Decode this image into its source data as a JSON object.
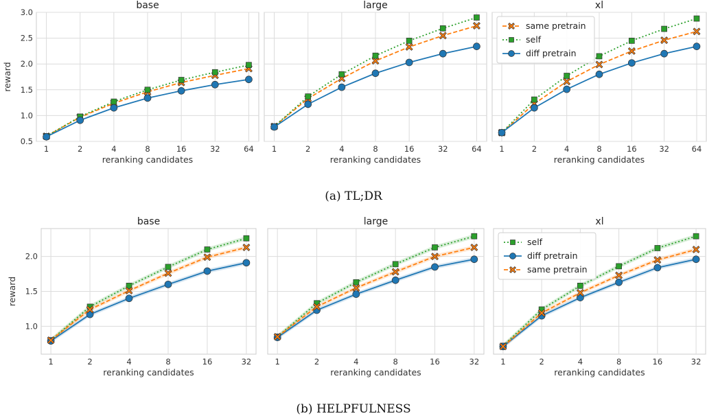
{
  "figure": {
    "caption_a": "(a) TL;DR",
    "caption_b": "(b) HELPFULNESS"
  },
  "colors": {
    "self": "#2ca02c",
    "same_pretrain": "#ff7f0e",
    "diff_pretrain": "#1f77b4",
    "grid": "#dcdcdc",
    "frame": "#cccccc"
  },
  "chart_data": [
    {
      "type": "line",
      "group": "a",
      "title": "base",
      "xlabel": "reranking candidates",
      "ylabel": "reward",
      "x": [
        "1",
        "2",
        "4",
        "8",
        "16",
        "32",
        "64"
      ],
      "ylim": [
        0.5,
        3.0
      ],
      "yticks": [
        "0.5",
        "1.0",
        "1.5",
        "2.0",
        "2.5",
        "3.0"
      ],
      "grid": true,
      "legend": null,
      "series": [
        {
          "name": "same pretrain",
          "key": "same_pretrain",
          "values": [
            0.6,
            0.97,
            1.24,
            1.46,
            1.64,
            1.78,
            1.91
          ]
        },
        {
          "name": "self",
          "key": "self",
          "values": [
            0.6,
            0.98,
            1.27,
            1.5,
            1.69,
            1.84,
            1.98
          ]
        },
        {
          "name": "diff pretrain",
          "key": "diff_pretrain",
          "values": [
            0.59,
            0.91,
            1.15,
            1.34,
            1.48,
            1.6,
            1.7
          ]
        }
      ]
    },
    {
      "type": "line",
      "group": "a",
      "title": "large",
      "xlabel": "reranking candidates",
      "ylabel": "",
      "x": [
        "1",
        "2",
        "4",
        "8",
        "16",
        "32",
        "64"
      ],
      "ylim": [
        0.5,
        3.0
      ],
      "yticks": [
        "0.5",
        "1.0",
        "1.5",
        "2.0",
        "2.5",
        "3.0"
      ],
      "grid": true,
      "legend": null,
      "series": [
        {
          "name": "same pretrain",
          "key": "same_pretrain",
          "values": [
            0.79,
            1.33,
            1.72,
            2.06,
            2.33,
            2.55,
            2.74
          ]
        },
        {
          "name": "self",
          "key": "self",
          "values": [
            0.79,
            1.37,
            1.8,
            2.16,
            2.45,
            2.69,
            2.9
          ]
        },
        {
          "name": "diff pretrain",
          "key": "diff_pretrain",
          "values": [
            0.78,
            1.22,
            1.55,
            1.82,
            2.03,
            2.2,
            2.34
          ]
        }
      ]
    },
    {
      "type": "line",
      "group": "a",
      "title": "xl",
      "xlabel": "reranking candidates",
      "ylabel": "",
      "x": [
        "1",
        "2",
        "4",
        "8",
        "16",
        "32",
        "64"
      ],
      "ylim": [
        0.5,
        3.0
      ],
      "yticks": [
        "0.5",
        "1.0",
        "1.5",
        "2.0",
        "2.5",
        "3.0"
      ],
      "grid": true,
      "legend": "upper-left",
      "series": [
        {
          "name": "same pretrain",
          "key": "same_pretrain",
          "values": [
            0.67,
            1.23,
            1.66,
            1.99,
            2.25,
            2.46,
            2.63
          ]
        },
        {
          "name": "self",
          "key": "self",
          "values": [
            0.67,
            1.31,
            1.77,
            2.15,
            2.45,
            2.68,
            2.88
          ]
        },
        {
          "name": "diff pretrain",
          "key": "diff_pretrain",
          "values": [
            0.67,
            1.15,
            1.51,
            1.8,
            2.02,
            2.2,
            2.34
          ]
        }
      ]
    },
    {
      "type": "line",
      "group": "b",
      "title": "base",
      "xlabel": "reranking candidates",
      "ylabel": "reward",
      "x": [
        "1",
        "2",
        "4",
        "8",
        "16",
        "32"
      ],
      "ylim": [
        0.6,
        2.4
      ],
      "yticks": [
        "1.0",
        "1.5",
        "2.0"
      ],
      "grid": true,
      "legend": null,
      "series": [
        {
          "name": "self",
          "key": "self",
          "values": [
            0.8,
            1.28,
            1.58,
            1.85,
            2.1,
            2.26
          ]
        },
        {
          "name": "diff pretrain",
          "key": "diff_pretrain",
          "values": [
            0.79,
            1.17,
            1.4,
            1.6,
            1.79,
            1.91
          ]
        },
        {
          "name": "same pretrain",
          "key": "same_pretrain",
          "values": [
            0.8,
            1.24,
            1.51,
            1.76,
            1.99,
            2.13
          ]
        }
      ]
    },
    {
      "type": "line",
      "group": "b",
      "title": "large",
      "xlabel": "reranking candidates",
      "ylabel": "",
      "x": [
        "1",
        "2",
        "4",
        "8",
        "16",
        "32"
      ],
      "ylim": [
        0.6,
        2.4
      ],
      "yticks": [
        "1.0",
        "1.5",
        "2.0"
      ],
      "grid": true,
      "legend": null,
      "series": [
        {
          "name": "self",
          "key": "self",
          "values": [
            0.85,
            1.33,
            1.63,
            1.89,
            2.13,
            2.29
          ]
        },
        {
          "name": "diff pretrain",
          "key": "diff_pretrain",
          "values": [
            0.84,
            1.23,
            1.46,
            1.66,
            1.85,
            1.96
          ]
        },
        {
          "name": "same pretrain",
          "key": "same_pretrain",
          "values": [
            0.85,
            1.28,
            1.55,
            1.78,
            2.0,
            2.13
          ]
        }
      ]
    },
    {
      "type": "line",
      "group": "b",
      "title": "xl",
      "xlabel": "reranking candidates",
      "ylabel": "",
      "x": [
        "1",
        "2",
        "4",
        "8",
        "16",
        "32"
      ],
      "ylim": [
        0.6,
        2.4
      ],
      "yticks": [
        "1.0",
        "1.5",
        "2.0"
      ],
      "grid": true,
      "legend": "upper-left",
      "series": [
        {
          "name": "self",
          "key": "self",
          "values": [
            0.72,
            1.24,
            1.58,
            1.86,
            2.12,
            2.29
          ]
        },
        {
          "name": "diff pretrain",
          "key": "diff_pretrain",
          "values": [
            0.71,
            1.15,
            1.41,
            1.63,
            1.84,
            1.96
          ]
        },
        {
          "name": "same pretrain",
          "key": "same_pretrain",
          "values": [
            0.71,
            1.19,
            1.48,
            1.73,
            1.95,
            2.1
          ]
        }
      ]
    }
  ]
}
